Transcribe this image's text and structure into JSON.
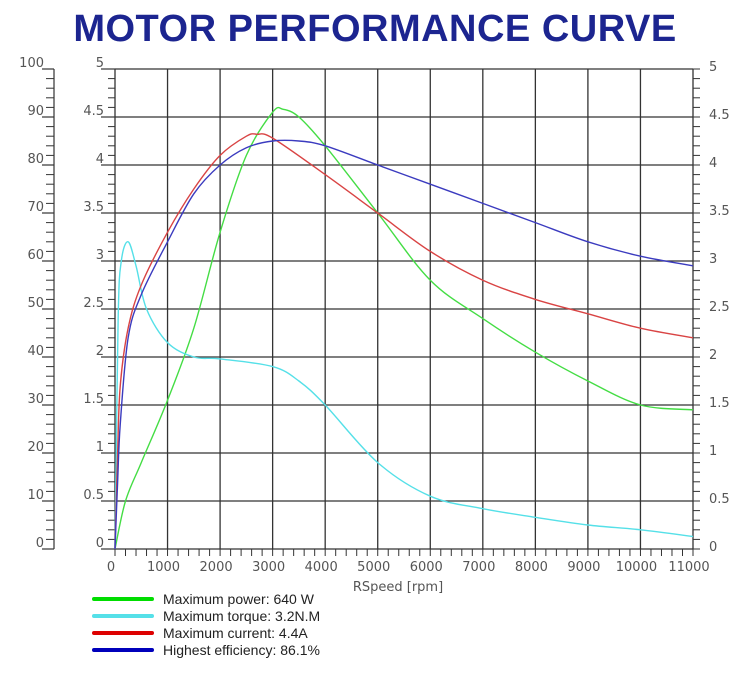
{
  "chart_data": {
    "type": "line",
    "title": "MOTOR PERFORMANCE CURVE",
    "xlabel": "RSpeed [rpm]",
    "xlim": [
      0,
      11000
    ],
    "x_ticks": [
      "0",
      "1000",
      "2000",
      "3000",
      "4000",
      "5000",
      "6000",
      "7000",
      "8000",
      "9000",
      "10000",
      "11000"
    ],
    "left_ylim": [
      0,
      100
    ],
    "left_ticks": [
      "0",
      "10",
      "20",
      "30",
      "40",
      "50",
      "60",
      "70",
      "80",
      "90",
      "100"
    ],
    "right_ylim": [
      0,
      5
    ],
    "inner_ticks": [
      "0",
      "0.5",
      "1",
      "1.5",
      "2",
      "2.5",
      "3",
      "3.5",
      "4",
      "4.5",
      "5"
    ],
    "right_ticks": [
      "0",
      "0.5",
      "1",
      "1.5",
      "2",
      "2.5",
      "3",
      "3.5",
      "4",
      "4.5",
      "5"
    ],
    "grid": true,
    "legend_position": "bottom-left",
    "series": [
      {
        "name": "Maximum power: 640 W",
        "color": "#44dd44",
        "x": [
          0,
          200,
          500,
          1000,
          1500,
          2000,
          2500,
          3000,
          3200,
          3500,
          4000,
          5000,
          6000,
          7000,
          8000,
          9000,
          10000,
          11000
        ],
        "y": [
          0,
          0.5,
          0.9,
          1.55,
          2.3,
          3.3,
          4.1,
          4.55,
          4.58,
          4.5,
          4.2,
          3.5,
          2.8,
          2.4,
          2.05,
          1.75,
          1.5,
          1.45
        ]
      },
      {
        "name": "Maximum torque: 3.2N.M",
        "color": "#55e0e8",
        "x": [
          0,
          60,
          120,
          250,
          400,
          600,
          1000,
          1500,
          2000,
          3000,
          3500,
          4000,
          5000,
          6000,
          7000,
          8000,
          9000,
          10000,
          11000
        ],
        "y": [
          0,
          2.4,
          3.0,
          3.2,
          2.95,
          2.5,
          2.15,
          2.0,
          1.98,
          1.9,
          1.75,
          1.5,
          0.9,
          0.55,
          0.42,
          0.33,
          0.25,
          0.2,
          0.13
        ]
      },
      {
        "name": "Maximum current: 4.4A",
        "color": "#d94444",
        "x": [
          0,
          50,
          100,
          250,
          500,
          1000,
          1500,
          2000,
          2500,
          2700,
          3000,
          4000,
          5000,
          6000,
          7000,
          8000,
          9000,
          10000,
          11000
        ],
        "y": [
          0,
          1.0,
          1.7,
          2.3,
          2.75,
          3.3,
          3.75,
          4.1,
          4.3,
          4.32,
          4.28,
          3.9,
          3.5,
          3.1,
          2.8,
          2.6,
          2.45,
          2.3,
          2.2
        ]
      },
      {
        "name": "Highest efficiency: 86.1%",
        "color": "#3b3bbf",
        "x": [
          0,
          50,
          100,
          250,
          500,
          1000,
          1500,
          2000,
          2500,
          3000,
          3500,
          4000,
          5000,
          6000,
          7000,
          8000,
          9000,
          10000,
          11000
        ],
        "y": [
          0,
          0.7,
          1.3,
          2.2,
          2.65,
          3.2,
          3.7,
          4.0,
          4.18,
          4.25,
          4.25,
          4.2,
          4.0,
          3.8,
          3.6,
          3.4,
          3.2,
          3.05,
          2.95
        ]
      }
    ]
  },
  "legend_colors": [
    "#00dd00",
    "#55e0e8",
    "#dd0000",
    "#0000bb"
  ]
}
